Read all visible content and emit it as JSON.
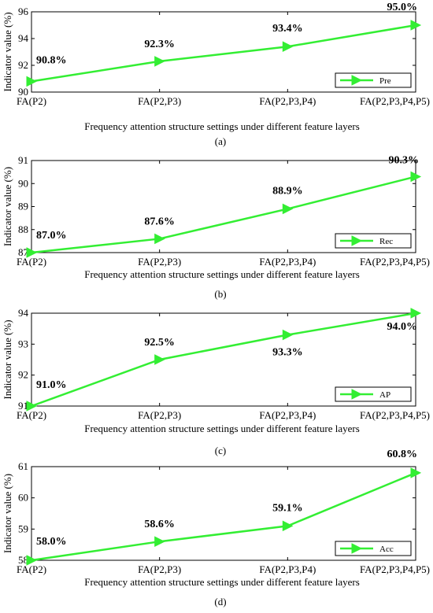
{
  "chart_data": [
    {
      "type": "line",
      "panel_label": "(a)",
      "categories": [
        "FA(P2)",
        "FA(P2,P3)",
        "FA(P2,P3,P4)",
        "FA(P2,P3,P4,P5)"
      ],
      "series": [
        {
          "name": "Pre",
          "values": [
            90.8,
            92.3,
            93.4,
            95.0
          ],
          "color": "#33ee33"
        }
      ],
      "data_labels": [
        "90.8%",
        "92.3%",
        "93.4%",
        "95.0%"
      ],
      "xlabel": "Frequency attention structure settings under different feature layers",
      "ylabel": "Indicator value (%)",
      "ylim": [
        90,
        96
      ],
      "yticks": [
        90,
        92,
        94,
        96
      ],
      "legend": "bottom-right",
      "grid": false
    },
    {
      "type": "line",
      "panel_label": "(b)",
      "categories": [
        "FA(P2)",
        "FA(P2,P3)",
        "FA(P2,P3,P4)",
        "FA(P2,P3,P4,P5)"
      ],
      "series": [
        {
          "name": "Rec",
          "values": [
            87.0,
            87.6,
            88.9,
            90.3
          ],
          "color": "#33ee33"
        }
      ],
      "data_labels": [
        "87.0%",
        "87.6%",
        "88.9%",
        "90.3%"
      ],
      "xlabel": "Frequency attention structure settings under different feature layers",
      "ylabel": "Indicator value (%)",
      "ylim": [
        87,
        91
      ],
      "yticks": [
        87,
        88,
        89,
        90,
        91
      ],
      "legend": "bottom-right",
      "grid": false
    },
    {
      "type": "line",
      "panel_label": "(c)",
      "categories": [
        "FA(P2)",
        "FA(P2,P3)",
        "FA(P2,P3,P4)",
        "FA(P2,P3,P4,P5)"
      ],
      "series": [
        {
          "name": "AP",
          "values": [
            91.0,
            92.5,
            93.3,
            94.0
          ],
          "color": "#33ee33"
        }
      ],
      "data_labels": [
        "91.0%",
        "92.5%",
        "93.3%",
        "94.0%"
      ],
      "xlabel": "Frequency attention structure settings under different feature layers",
      "ylabel": "Indicator value (%)",
      "ylim": [
        91,
        94
      ],
      "yticks": [
        91,
        92,
        93,
        94
      ],
      "legend": "bottom-right",
      "grid": false
    },
    {
      "type": "line",
      "panel_label": "(d)",
      "categories": [
        "FA(P2)",
        "FA(P2,P3)",
        "FA(P2,P3,P4)",
        "FA(P2,P3,P4,P5)"
      ],
      "series": [
        {
          "name": "Acc",
          "values": [
            58.0,
            58.6,
            59.1,
            60.8
          ],
          "color": "#33ee33"
        }
      ],
      "data_labels": [
        "58.0%",
        "58.6%",
        "59.1%",
        "60.8%"
      ],
      "xlabel": "Frequency attention structure settings under different feature layers",
      "ylabel": "Indicator value (%)",
      "ylim": [
        58,
        61
      ],
      "yticks": [
        58,
        59,
        60,
        61
      ],
      "legend": "bottom-right",
      "grid": false
    }
  ]
}
